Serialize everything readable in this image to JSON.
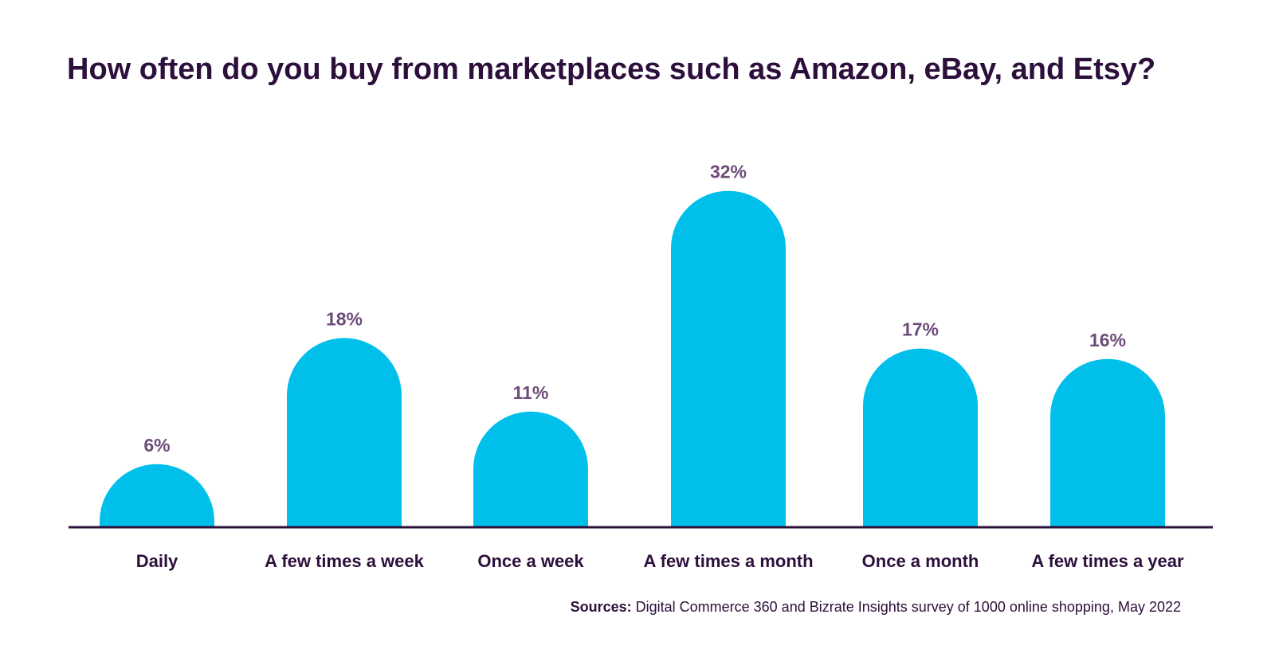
{
  "chart_data": {
    "type": "bar",
    "title": "How often do you buy from marketplaces such as Amazon, eBay, and Etsy?",
    "categories": [
      "Daily",
      "A few times a week",
      "Once a week",
      "A few times a month",
      "Once a month",
      "A few times a year"
    ],
    "values": [
      6,
      18,
      11,
      32,
      17,
      16
    ],
    "value_labels": [
      "6%",
      "18%",
      "11%",
      "32%",
      "17%",
      "16%"
    ],
    "unit": "%",
    "ylim": [
      0,
      32
    ],
    "grid": false,
    "bar_color": "#00c0eb",
    "axis_color": "#2d0f3c",
    "value_label_color": "#6e4b78",
    "label_color": "#2d0f3c"
  },
  "source": {
    "prefix": "Sources:",
    "text": " Digital Commerce 360 and Bizrate Insights survey of 1000 online shopping, May 2022"
  }
}
